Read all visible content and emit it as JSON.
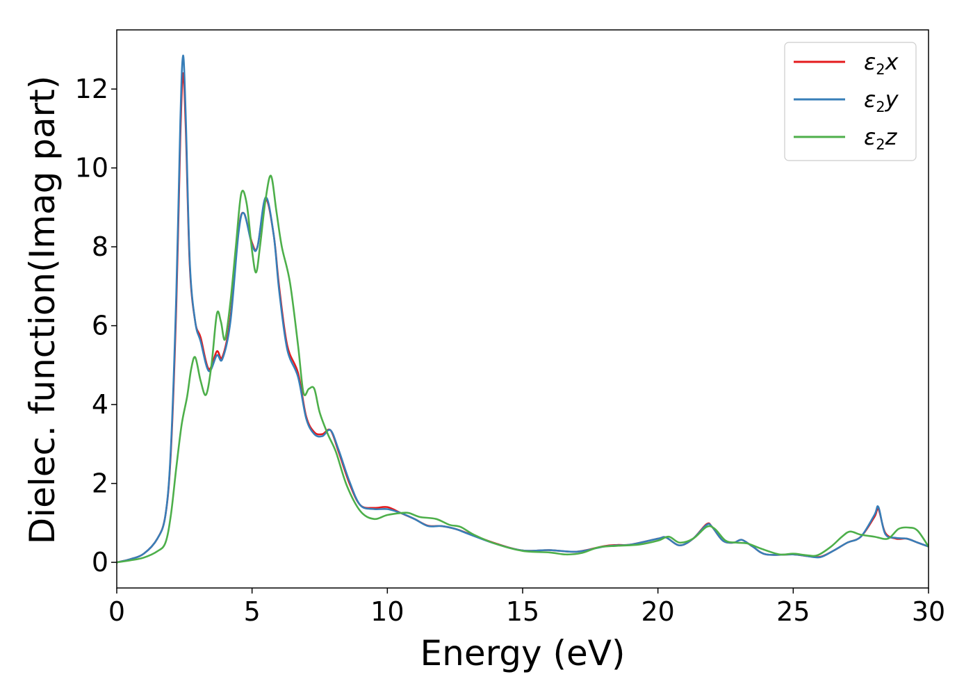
{
  "chart_data": {
    "type": "line",
    "xlabel": "Energy (eV)",
    "ylabel": "Dielec. function(Imag part)",
    "xlim": [
      0,
      30
    ],
    "ylim": [
      -0.65,
      13.5
    ],
    "xticks": [
      0,
      5,
      10,
      15,
      20,
      25,
      30
    ],
    "yticks": [
      0,
      2,
      4,
      6,
      8,
      10,
      12
    ],
    "grid": false,
    "legend_position": "top-right",
    "series": [
      {
        "name": "ε2x",
        "legend": {
          "base": "ε",
          "sub": "2",
          "comp": "x"
        },
        "color": "#e41a1c",
        "x": [
          0,
          0.5,
          1.0,
          1.5,
          1.8,
          2.0,
          2.2,
          2.35,
          2.45,
          2.55,
          2.7,
          2.9,
          3.1,
          3.4,
          3.7,
          3.9,
          4.2,
          4.5,
          4.7,
          5.0,
          5.2,
          5.5,
          5.8,
          6.0,
          6.3,
          6.7,
          7.0,
          7.3,
          7.6,
          7.9,
          8.2,
          8.6,
          9.0,
          9.5,
          10.0,
          10.5,
          11.0,
          11.5,
          12.0,
          12.5,
          13.0,
          14.0,
          15.0,
          16.0,
          17.0,
          18.0,
          18.5,
          19.0,
          20.0,
          20.3,
          20.8,
          21.3,
          21.8,
          22.0,
          22.4,
          22.8,
          23.1,
          23.5,
          24.0,
          25.0,
          25.5,
          26.0,
          26.5,
          27.0,
          27.5,
          28.0,
          28.15,
          28.4,
          28.8,
          29.2,
          29.6,
          30.0
        ],
        "y": [
          0,
          0.08,
          0.22,
          0.6,
          1.2,
          2.8,
          6.5,
          10.8,
          12.4,
          11.0,
          7.5,
          6.1,
          5.7,
          4.9,
          5.35,
          5.2,
          6.2,
          8.4,
          8.85,
          8.1,
          8.0,
          9.2,
          8.3,
          7.0,
          5.5,
          4.8,
          3.7,
          3.3,
          3.25,
          3.35,
          2.8,
          2.0,
          1.45,
          1.38,
          1.4,
          1.25,
          1.1,
          0.93,
          0.92,
          0.85,
          0.73,
          0.48,
          0.3,
          0.31,
          0.27,
          0.41,
          0.44,
          0.45,
          0.6,
          0.63,
          0.43,
          0.6,
          0.97,
          0.9,
          0.55,
          0.5,
          0.57,
          0.4,
          0.2,
          0.2,
          0.16,
          0.14,
          0.3,
          0.5,
          0.65,
          1.15,
          1.35,
          0.75,
          0.6,
          0.6,
          0.5,
          0.4
        ]
      },
      {
        "name": "ε2y",
        "legend": {
          "base": "ε",
          "sub": "2",
          "comp": "y"
        },
        "color": "#377eb8",
        "x": [
          0,
          0.5,
          1.0,
          1.5,
          1.8,
          2.0,
          2.2,
          2.35,
          2.45,
          2.55,
          2.7,
          2.9,
          3.1,
          3.4,
          3.7,
          3.9,
          4.2,
          4.5,
          4.7,
          5.0,
          5.2,
          5.5,
          5.8,
          6.0,
          6.3,
          6.7,
          7.0,
          7.3,
          7.6,
          7.9,
          8.2,
          8.6,
          9.0,
          9.5,
          10.0,
          10.5,
          11.0,
          11.5,
          12.0,
          12.5,
          13.0,
          14.0,
          15.0,
          16.0,
          17.0,
          18.0,
          18.5,
          19.0,
          20.0,
          20.3,
          20.8,
          21.3,
          21.8,
          22.0,
          22.4,
          22.8,
          23.1,
          23.5,
          24.0,
          25.0,
          25.5,
          26.0,
          26.5,
          27.0,
          27.5,
          28.0,
          28.15,
          28.4,
          28.8,
          29.2,
          29.6,
          30.0
        ],
        "y": [
          0,
          0.08,
          0.22,
          0.6,
          1.2,
          2.9,
          6.8,
          11.2,
          12.85,
          11.3,
          7.6,
          6.1,
          5.6,
          4.85,
          5.25,
          5.15,
          6.1,
          8.35,
          8.85,
          8.05,
          8.0,
          9.25,
          8.3,
          6.9,
          5.4,
          4.7,
          3.65,
          3.25,
          3.2,
          3.35,
          2.85,
          2.05,
          1.45,
          1.35,
          1.35,
          1.25,
          1.1,
          0.92,
          0.92,
          0.85,
          0.72,
          0.47,
          0.3,
          0.31,
          0.27,
          0.4,
          0.43,
          0.45,
          0.6,
          0.63,
          0.43,
          0.6,
          0.95,
          0.9,
          0.55,
          0.5,
          0.57,
          0.4,
          0.2,
          0.2,
          0.16,
          0.13,
          0.3,
          0.5,
          0.65,
          1.2,
          1.4,
          0.72,
          0.62,
          0.6,
          0.5,
          0.4
        ]
      },
      {
        "name": "ε2z",
        "legend": {
          "base": "ε",
          "sub": "2",
          "comp": "z"
        },
        "color": "#4daf4a",
        "x": [
          0,
          0.5,
          1.0,
          1.5,
          1.8,
          2.0,
          2.2,
          2.4,
          2.6,
          2.75,
          2.9,
          3.1,
          3.3,
          3.5,
          3.7,
          3.85,
          4.0,
          4.2,
          4.4,
          4.6,
          4.8,
          5.0,
          5.15,
          5.3,
          5.5,
          5.7,
          5.9,
          6.1,
          6.4,
          6.7,
          6.9,
          7.1,
          7.3,
          7.5,
          7.8,
          8.1,
          8.5,
          9.0,
          9.5,
          10.0,
          10.5,
          10.8,
          11.2,
          11.8,
          12.3,
          12.7,
          13.2,
          14.0,
          15.0,
          16.0,
          16.6,
          17.2,
          17.8,
          18.5,
          19.3,
          20.0,
          20.4,
          20.8,
          21.3,
          21.8,
          22.1,
          22.5,
          22.9,
          23.3,
          23.8,
          24.5,
          25.0,
          25.5,
          25.9,
          26.4,
          26.8,
          27.1,
          27.5,
          28.0,
          28.5,
          28.9,
          29.3,
          29.6,
          30.0
        ],
        "y": [
          0,
          0.05,
          0.12,
          0.28,
          0.5,
          1.2,
          2.4,
          3.5,
          4.2,
          4.9,
          5.2,
          4.6,
          4.25,
          5.0,
          6.3,
          6.1,
          5.65,
          6.6,
          8.0,
          9.35,
          9.1,
          7.9,
          7.35,
          8.05,
          9.2,
          9.8,
          8.9,
          8.0,
          7.1,
          5.5,
          4.3,
          4.4,
          4.4,
          3.8,
          3.25,
          2.8,
          1.95,
          1.3,
          1.1,
          1.2,
          1.25,
          1.25,
          1.15,
          1.1,
          0.95,
          0.9,
          0.7,
          0.47,
          0.29,
          0.25,
          0.2,
          0.24,
          0.38,
          0.42,
          0.45,
          0.55,
          0.65,
          0.5,
          0.6,
          0.9,
          0.85,
          0.55,
          0.5,
          0.48,
          0.35,
          0.2,
          0.22,
          0.18,
          0.18,
          0.4,
          0.65,
          0.78,
          0.7,
          0.65,
          0.6,
          0.85,
          0.88,
          0.8,
          0.4
        ]
      }
    ]
  }
}
